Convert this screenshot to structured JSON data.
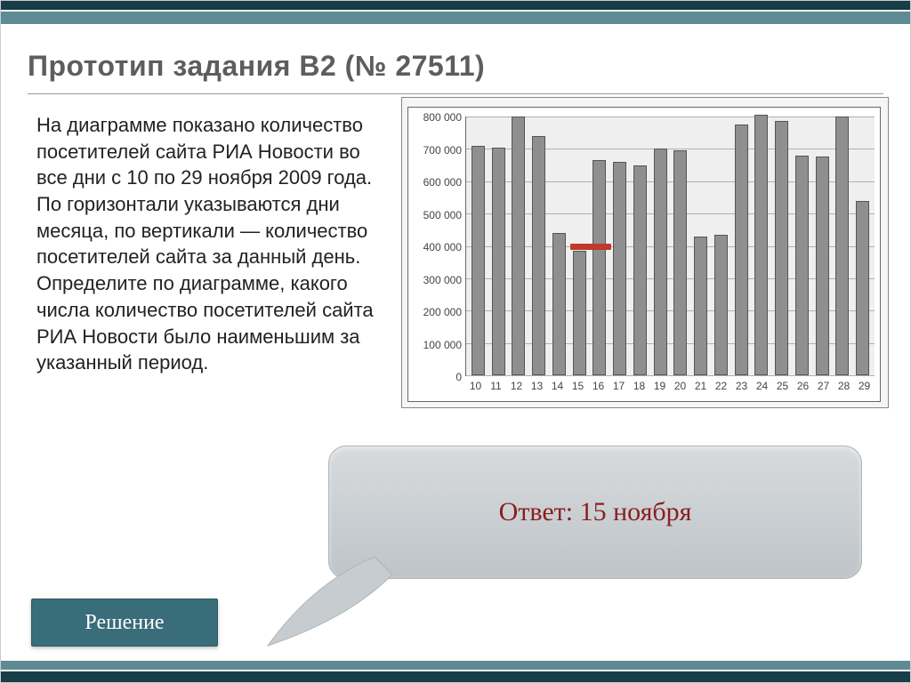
{
  "title": "Прототип задания B2 (№ 27511)",
  "problem_text": "На диаграмме показано количество посетителей сайта РИА Новости во все дни с 10 по 29 ноября 2009 года. По горизонтали указываются дни месяца, по вертикали — количество посетителей сайта за данный день. Определите по диаграмме, какого числа количество посетителей сайта РИА Новости было наименьшим за указанный период.",
  "answer": "Ответ: 15 ноября",
  "solution_label": "Решение",
  "theme": {
    "accent_dark": "#163d48",
    "accent_light": "#5e8a94",
    "title_color": "#5d5d5d",
    "answer_color": "#8a1f1f",
    "bubble_bg_top": "#d7dbde",
    "bubble_bg_bottom": "#bfc4c8"
  },
  "chart": {
    "type": "bar",
    "x_labels": [
      "10",
      "11",
      "12",
      "13",
      "14",
      "15",
      "16",
      "17",
      "18",
      "19",
      "20",
      "21",
      "22",
      "23",
      "24",
      "25",
      "26",
      "27",
      "28",
      "29"
    ],
    "values": [
      710000,
      705000,
      800000,
      740000,
      440000,
      385000,
      665000,
      660000,
      650000,
      700000,
      695000,
      430000,
      435000,
      775000,
      805000,
      785000,
      680000,
      675000,
      800000,
      540000
    ],
    "bar_color": "#8f8f8f",
    "bar_border": "#555555",
    "ylim": [
      0,
      800000
    ],
    "ytick_step": 100000,
    "y_ticks": [
      "0",
      "100 000",
      "200 000",
      "300 000",
      "400 000",
      "500 000",
      "600 000",
      "700 000",
      "800 000"
    ],
    "grid_color": "#b0b0b0",
    "plot_bg": "#efefef",
    "outer_bg": "#f5f5f5",
    "border_color": "#666666",
    "label_fontsize": 12,
    "bar_width_ratio": 0.65,
    "highlight": {
      "color": "#c0392b",
      "y_value": 400000,
      "x_start_index": 5,
      "x_end_index": 7
    }
  }
}
